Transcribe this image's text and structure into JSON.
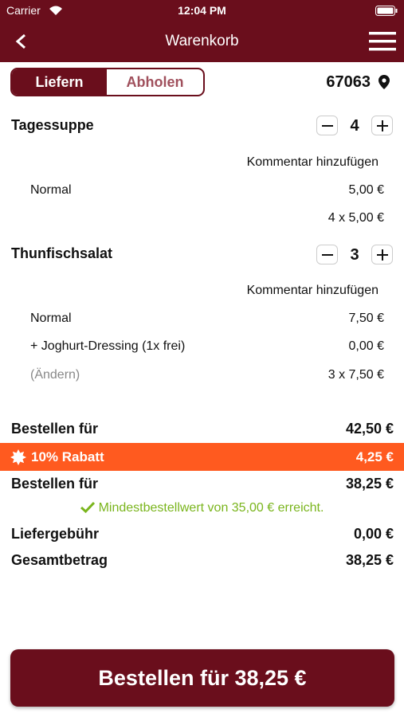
{
  "status_bar": {
    "carrier": "Carrier",
    "time": "12:04 PM"
  },
  "header": {
    "title": "Warenkorb"
  },
  "tabs": {
    "deliver": "Liefern",
    "pickup": "Abholen"
  },
  "postcode": "67063",
  "items": [
    {
      "name": "Tagessuppe",
      "quantity": 4,
      "comment": "Kommentar hinzufügen",
      "lines": [
        {
          "label": "Normal",
          "price": "5,00 €"
        }
      ],
      "subtotal": "4 x 5,00 €"
    },
    {
      "name": "Thunfischsalat",
      "quantity": 3,
      "comment": "Kommentar hinzufügen",
      "lines": [
        {
          "label": "Normal",
          "price": "7,50 €"
        },
        {
          "label": "+ Joghurt-Dressing (1x frei)",
          "price": "0,00 €"
        }
      ],
      "change_link": "(Ändern)",
      "subtotal": "3 x 7,50 €"
    }
  ],
  "summary": {
    "order_for": {
      "label": "Bestellen für",
      "value": "42,50 €"
    },
    "discount": {
      "label": "10% Rabatt",
      "value": "4,25 €"
    },
    "order_for_discounted": {
      "label": "Bestellen für",
      "value": "38,25 €"
    },
    "minimum_note": "Mindestbestellwert von 35,00 € erreicht.",
    "delivery_fee": {
      "label": "Liefergebühr",
      "value": "0,00 €"
    },
    "total": {
      "label": "Gesamtbetrag",
      "value": "38,25 €"
    }
  },
  "order_button": "Bestellen für 38,25 €"
}
